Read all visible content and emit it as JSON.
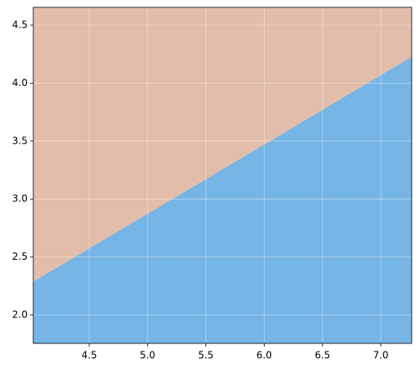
{
  "chart_data": {
    "type": "area",
    "x": [
      4.02,
      5.0,
      6.0,
      7.265
    ],
    "values": [
      2.287,
      2.873,
      3.47,
      4.227
    ],
    "color_below": "#76b5e5",
    "color_above": "#e2bdab",
    "xlim": [
      4.02,
      7.265
    ],
    "xticks": [
      4.5,
      {
        "value": 5,
        "label": "5.0"
      },
      5.5,
      {
        "value": 6,
        "label": "6.0"
      },
      6.5,
      {
        "value": 7,
        "label": "7.0"
      }
    ],
    "ylim": [
      1.755,
      4.654
    ],
    "yticks": [
      {
        "value": 2,
        "label": "2.0"
      },
      2.5,
      {
        "value": 3,
        "label": "3.0"
      },
      3.5,
      {
        "value": 4,
        "label": "4.0"
      },
      4.5
    ],
    "grid": true
  }
}
